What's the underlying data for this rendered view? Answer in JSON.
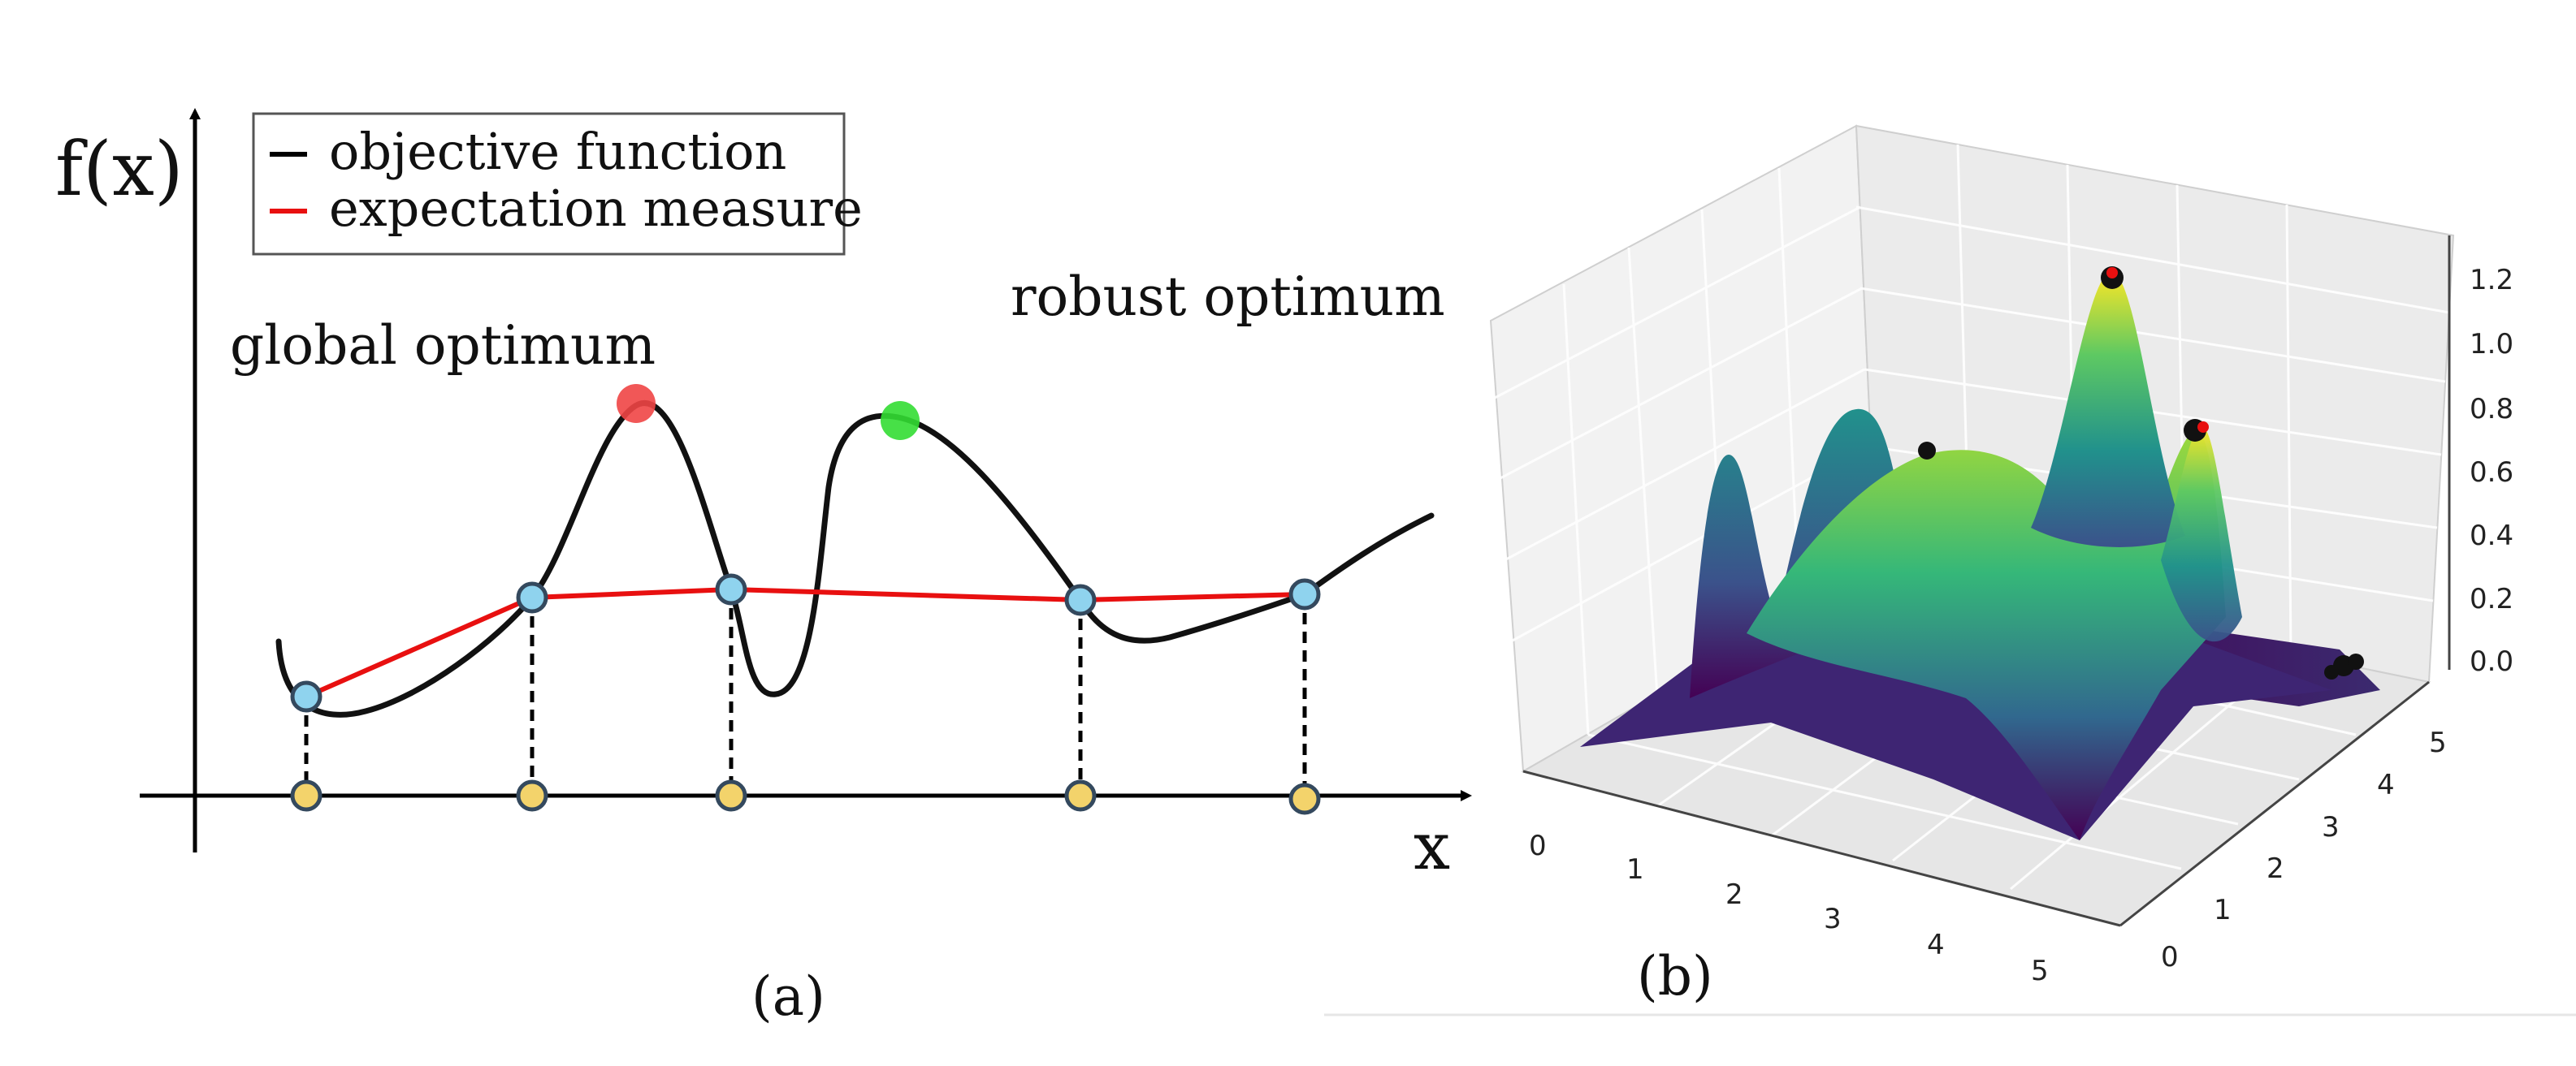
{
  "panel_a": {
    "y_axis_label": "f(x)",
    "x_axis_label": "x",
    "legend": [
      {
        "label": "objective function",
        "color": "#000000"
      },
      {
        "label": "expectation measure",
        "color": "#e81010"
      }
    ],
    "annotation_global": "global optimum",
    "annotation_robust": "robust optimum",
    "caption": "(a)",
    "colors": {
      "curve": "#111111",
      "expectation": "#e81010",
      "sample_marker": "#8fd3ee",
      "axis_marker": "#f3d36b",
      "global_marker": "#f04545",
      "robust_marker": "#33dd33"
    }
  },
  "panel_b": {
    "caption": "(b)",
    "z_ticks": [
      "0.0",
      "0.2",
      "0.4",
      "0.6",
      "0.8",
      "1.0",
      "1.2"
    ],
    "x_ticks": [
      "0",
      "1",
      "2",
      "3",
      "4",
      "5"
    ],
    "y_ticks": [
      "0",
      "1",
      "2",
      "3",
      "4",
      "5"
    ],
    "colormap": "viridis"
  }
}
